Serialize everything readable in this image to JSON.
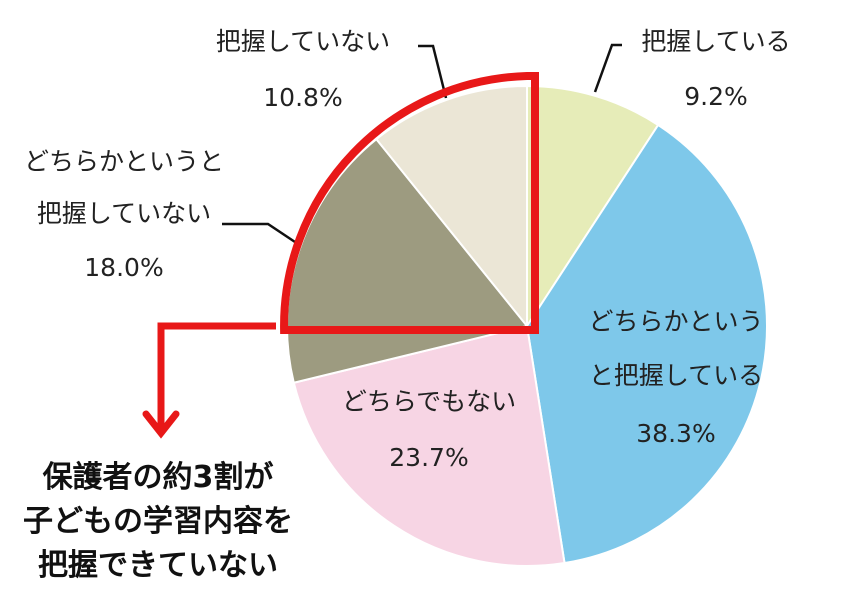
{
  "chart_data": {
    "type": "pie",
    "start_angle_deg": 0,
    "direction": "clockwise",
    "slices": [
      {
        "label_lines": [
          "把握している"
        ],
        "value": 9.2,
        "value_text": "9.2%",
        "color": "#e6ecb8"
      },
      {
        "label_lines": [
          "どちらかという",
          "と把握している"
        ],
        "value": 38.3,
        "value_text": "38.3%",
        "color": "#7ec8ea"
      },
      {
        "label_lines": [
          "どちらでもない"
        ],
        "value": 23.7,
        "value_text": "23.7%",
        "color": "#f7d5e4"
      },
      {
        "label_lines": [
          "どちらかというと",
          "把握していない"
        ],
        "value": 18.0,
        "value_text": "18.0%",
        "color": "#9d9b80"
      },
      {
        "label_lines": [
          "把握していない"
        ],
        "value": 10.8,
        "value_text": "10.8%",
        "color": "#ebe6d6"
      }
    ],
    "highlighted_slices": [
      3,
      4
    ],
    "highlight_color": "#e81818",
    "callout_lines": [
      "保護者の約3割が",
      "子どもの学習内容を",
      "把握できていない"
    ]
  }
}
